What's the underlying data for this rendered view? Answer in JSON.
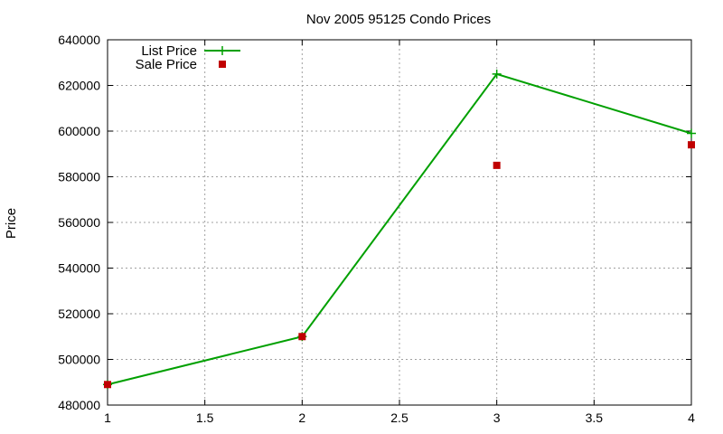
{
  "chart_data": {
    "type": "line",
    "title": "Nov 2005 95125 Condo Prices",
    "xlabel": "",
    "ylabel": "Price",
    "xlim": [
      1,
      4
    ],
    "ylim": [
      480000,
      640000
    ],
    "xticks": [
      1,
      1.5,
      2,
      2.5,
      3,
      3.5,
      4
    ],
    "yticks": [
      480000,
      500000,
      520000,
      540000,
      560000,
      580000,
      600000,
      620000,
      640000
    ],
    "xtick_labels": [
      "1",
      "1.5",
      "2",
      "2.5",
      "3",
      "3.5",
      "4"
    ],
    "ytick_labels": [
      "480000",
      "500000",
      "520000",
      "540000",
      "560000",
      "580000",
      "600000",
      "620000",
      "640000"
    ],
    "grid": true,
    "legend_position": "top-left",
    "series": [
      {
        "name": "List Price",
        "style": "line-with-plus-markers",
        "color": "#00a000",
        "x": [
          1,
          2,
          3,
          4
        ],
        "y": [
          489000,
          510000,
          625000,
          599000
        ]
      },
      {
        "name": "Sale Price",
        "style": "square-markers",
        "color": "#c00000",
        "x": [
          1,
          2,
          3,
          4
        ],
        "y": [
          489000,
          510000,
          585000,
          594000
        ]
      }
    ]
  }
}
